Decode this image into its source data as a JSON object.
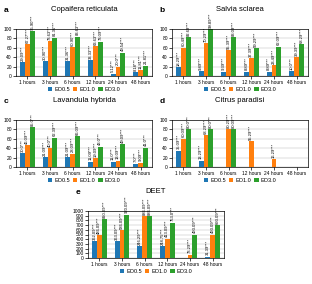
{
  "chart_data": [
    {
      "type": "bar",
      "title": "Copaifera reticulata",
      "annotations": [
        {
          "text": "a"
        }
      ],
      "categories": [
        "1 hours",
        "3 hours",
        "6 hours",
        "12 hours",
        "24 hours",
        "48 hours"
      ],
      "series": [
        {
          "name": "EO0.5",
          "values": [
            29.09,
            30.9,
            31.36,
            33.33,
            5.12,
            8.18
          ],
          "value_labels": [
            "29.09***",
            "30.90***",
            "31.36***",
            "33.33***",
            "5.12***",
            "8.18***"
          ]
        },
        {
          "name": "EO1.0",
          "values": [
            67.27,
            73.63,
            60.9,
            63.63,
            20.0,
            11.81
          ],
          "value_labels": [
            "67.27***",
            "73.63***",
            "60.90***",
            "63.63***",
            "20.0***",
            "11.81***"
          ]
        },
        {
          "name": "EO3.0",
          "values": [
            95.9,
            81.36,
            83.63,
            73.09,
            49.54,
            21.81
          ],
          "value_labels": [
            "95.90***",
            "81.36***",
            "83.63***",
            "73.09***",
            "49.54***",
            "21.81***"
          ]
        }
      ],
      "ylim": [
        0,
        100
      ],
      "yticks": [
        0,
        20,
        40,
        60,
        80,
        100
      ],
      "grid": "y",
      "legend": "upper center",
      "data_labels": true
    },
    {
      "type": "bar",
      "title": "Salvia sclarea",
      "annotations": [
        {
          "text": "b"
        }
      ],
      "categories": [
        "1 hours",
        "3 hours",
        "6 hours",
        "12 hours",
        "24 hours",
        "48 hours"
      ],
      "series": [
        {
          "name": "EO0.5",
          "values": [
            18.29,
            9.89,
            9.39,
            8.89,
            8.89,
            10.0
          ],
          "value_labels": [
            "18.29***",
            "9.89***",
            "9.39***",
            "8.89***",
            "8.89***",
            "10.0***"
          ]
        },
        {
          "name": "EO1.0",
          "values": [
            60.49,
            70.29,
            55.39,
            37.39,
            23.49,
            39.39
          ],
          "value_labels": [
            "60.49***",
            "70.29***",
            "55.39***",
            "37.39***",
            "23.49***",
            "39.39***"
          ]
        },
        {
          "name": "EO3.0",
          "values": [
            82.69,
            99.89,
            83.09,
            59.29,
            62.09,
            68.29
          ],
          "value_labels": [
            "82.69***",
            "99.89***",
            "83.09***",
            "59.29***",
            "62.09***",
            "68.29***"
          ]
        }
      ],
      "ylim": [
        0,
        100
      ],
      "yticks": [
        0,
        20,
        40,
        60,
        80,
        100
      ],
      "grid": "y",
      "legend": "upper center",
      "data_labels": true
    },
    {
      "type": "bar",
      "title": "Lavandula hybrida",
      "annotations": [
        {
          "text": "c"
        }
      ],
      "categories": [
        "1 hours",
        "3 hours",
        "6 hours",
        "12 hours",
        "24 hours",
        "48 hours"
      ],
      "series": [
        {
          "name": "EO0.5",
          "values": [
            30.0,
            21.09,
            21.09,
            11.09,
            11.0,
            7.0
          ],
          "value_labels": [
            "30.0***",
            "21.09***",
            "21.09***",
            "11.09***",
            "11.0***",
            "7.0***"
          ]
        },
        {
          "name": "EO1.0",
          "values": [
            46.09,
            40.0,
            28.09,
            19.09,
            13.09,
            9.09
          ],
          "value_labels": [
            "46.09***",
            "40.0***",
            "28.09***",
            "19.09***",
            "13.09***",
            "9.09***"
          ]
        },
        {
          "name": "EO3.0",
          "values": [
            85.0,
            62.39,
            66.09,
            43.0,
            49.09,
            41.0
          ],
          "value_labels": [
            "85.0***",
            "62.39***",
            "66.09***",
            "43.0***",
            "49.09***",
            "41.0***"
          ]
        }
      ],
      "ylim": [
        0,
        100
      ],
      "yticks": [
        0,
        20,
        40,
        60,
        80,
        100
      ],
      "grid": "y",
      "legend": "upper center",
      "data_labels": true
    },
    {
      "type": "bar",
      "title": "Citrus paradisi",
      "annotations": [
        {
          "text": "d"
        }
      ],
      "categories": [
        "1 hours",
        "3 hours",
        "6 hours",
        "12 hours",
        "24 hours",
        "48 hours"
      ],
      "series": [
        {
          "name": "EO0.5",
          "values": [
            35.09,
            13.29,
            0.0,
            0.0,
            0.0,
            0.0
          ],
          "value_labels": [
            "35.09***",
            "13.29***",
            null,
            null,
            null,
            null
          ]
        },
        {
          "name": "EO1.0",
          "values": [
            60.09,
            68.29,
            80.29,
            55.29,
            16.29,
            0.0
          ],
          "value_labels": [
            "60.09***",
            "68.29***",
            "80.29***",
            "55.29***",
            "16.29***",
            null
          ]
        },
        {
          "name": "EO3.0",
          "values": [
            80.0,
            80.0,
            80.09,
            0.0,
            0.0,
            0.0
          ],
          "value_labels": [
            "80.0***",
            "80.0***",
            "80.09***",
            null,
            null,
            null
          ]
        }
      ],
      "ylim": [
        0,
        100
      ],
      "yticks": [
        0,
        20,
        40,
        60,
        80,
        100
      ],
      "grid": "y",
      "legend": "upper center",
      "data_labels": true
    },
    {
      "type": "bar",
      "title": "DEET",
      "annotations": [
        {
          "text": "e"
        }
      ],
      "categories": [
        "1 hours",
        "3 hours",
        "6 hours",
        "12 hours",
        "24 hours",
        "48 hours"
      ],
      "series": [
        {
          "name": "EO0.5",
          "values": [
            362.09,
            363.09,
            246.29,
            248.75,
            0.0,
            31.39
          ],
          "value_labels": [
            "362.09***",
            "363.09***",
            "246.29***",
            "248.75***",
            null,
            "31.39***"
          ]
        },
        {
          "name": "EO1.0",
          "values": [
            486.09,
            586.09,
            886.09,
            413.09,
            73.29,
            493.09
          ],
          "value_labels": [
            "486.09***",
            "586.09***",
            "886.09***",
            "413.09***",
            "73.29***",
            "493.09***"
          ]
        },
        {
          "name": "EO3.0",
          "values": [
            820.09,
            920.09,
            886.09,
            753.0,
            493.09,
            693.09
          ],
          "value_labels": [
            "820.09***",
            "920.09***",
            "886.09***",
            "753.0***",
            "493.09***",
            "693.09***"
          ]
        }
      ],
      "ylim": [
        0,
        1000
      ],
      "yticks": [
        0,
        100,
        200,
        300,
        400,
        500,
        600,
        700,
        800,
        900,
        1000
      ],
      "grid": "y",
      "legend": "upper center",
      "data_labels": true
    }
  ]
}
